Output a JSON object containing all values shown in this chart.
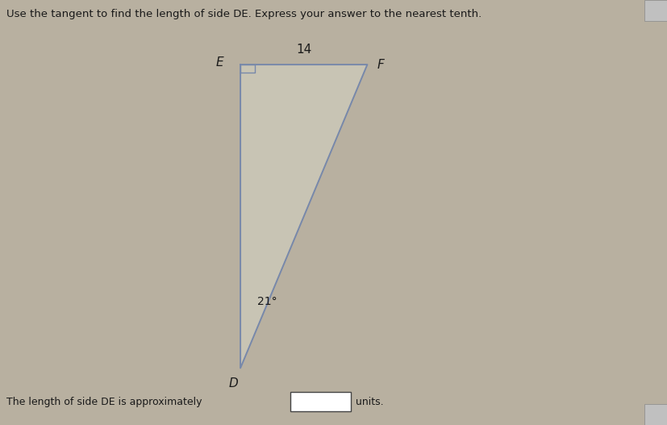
{
  "title": "Use the tangent to find the length of side DE. Express your answer to the nearest tenth.",
  "title_fontsize": 9.5,
  "background_color": "#b8b0a0",
  "inner_bg_color": "#ddddd0",
  "ef_label": "14",
  "angle_label": "21°",
  "bottom_text": "The length of side DE is approximately",
  "units_text": "units.",
  "line_color": "#7788aa",
  "text_color": "#1a1a1a",
  "label_E": "E",
  "label_F": "F",
  "label_D": "D"
}
